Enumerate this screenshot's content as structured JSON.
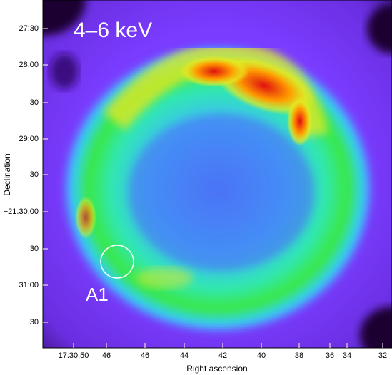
{
  "image": {
    "label": "4–6 keV",
    "region_label": "A1",
    "x_axis_title": "Right ascension",
    "y_axis_title": "Declination",
    "x_tick_labels": [
      "17:30:50",
      "46",
      "46",
      "44",
      "42",
      "40",
      "38",
      "36",
      "34",
      "32"
    ],
    "y_tick_labels": [
      "27:30",
      "28:00",
      "30",
      "29:00",
      "30",
      "−21:30:00",
      "30",
      "31:00",
      "30"
    ]
  }
}
